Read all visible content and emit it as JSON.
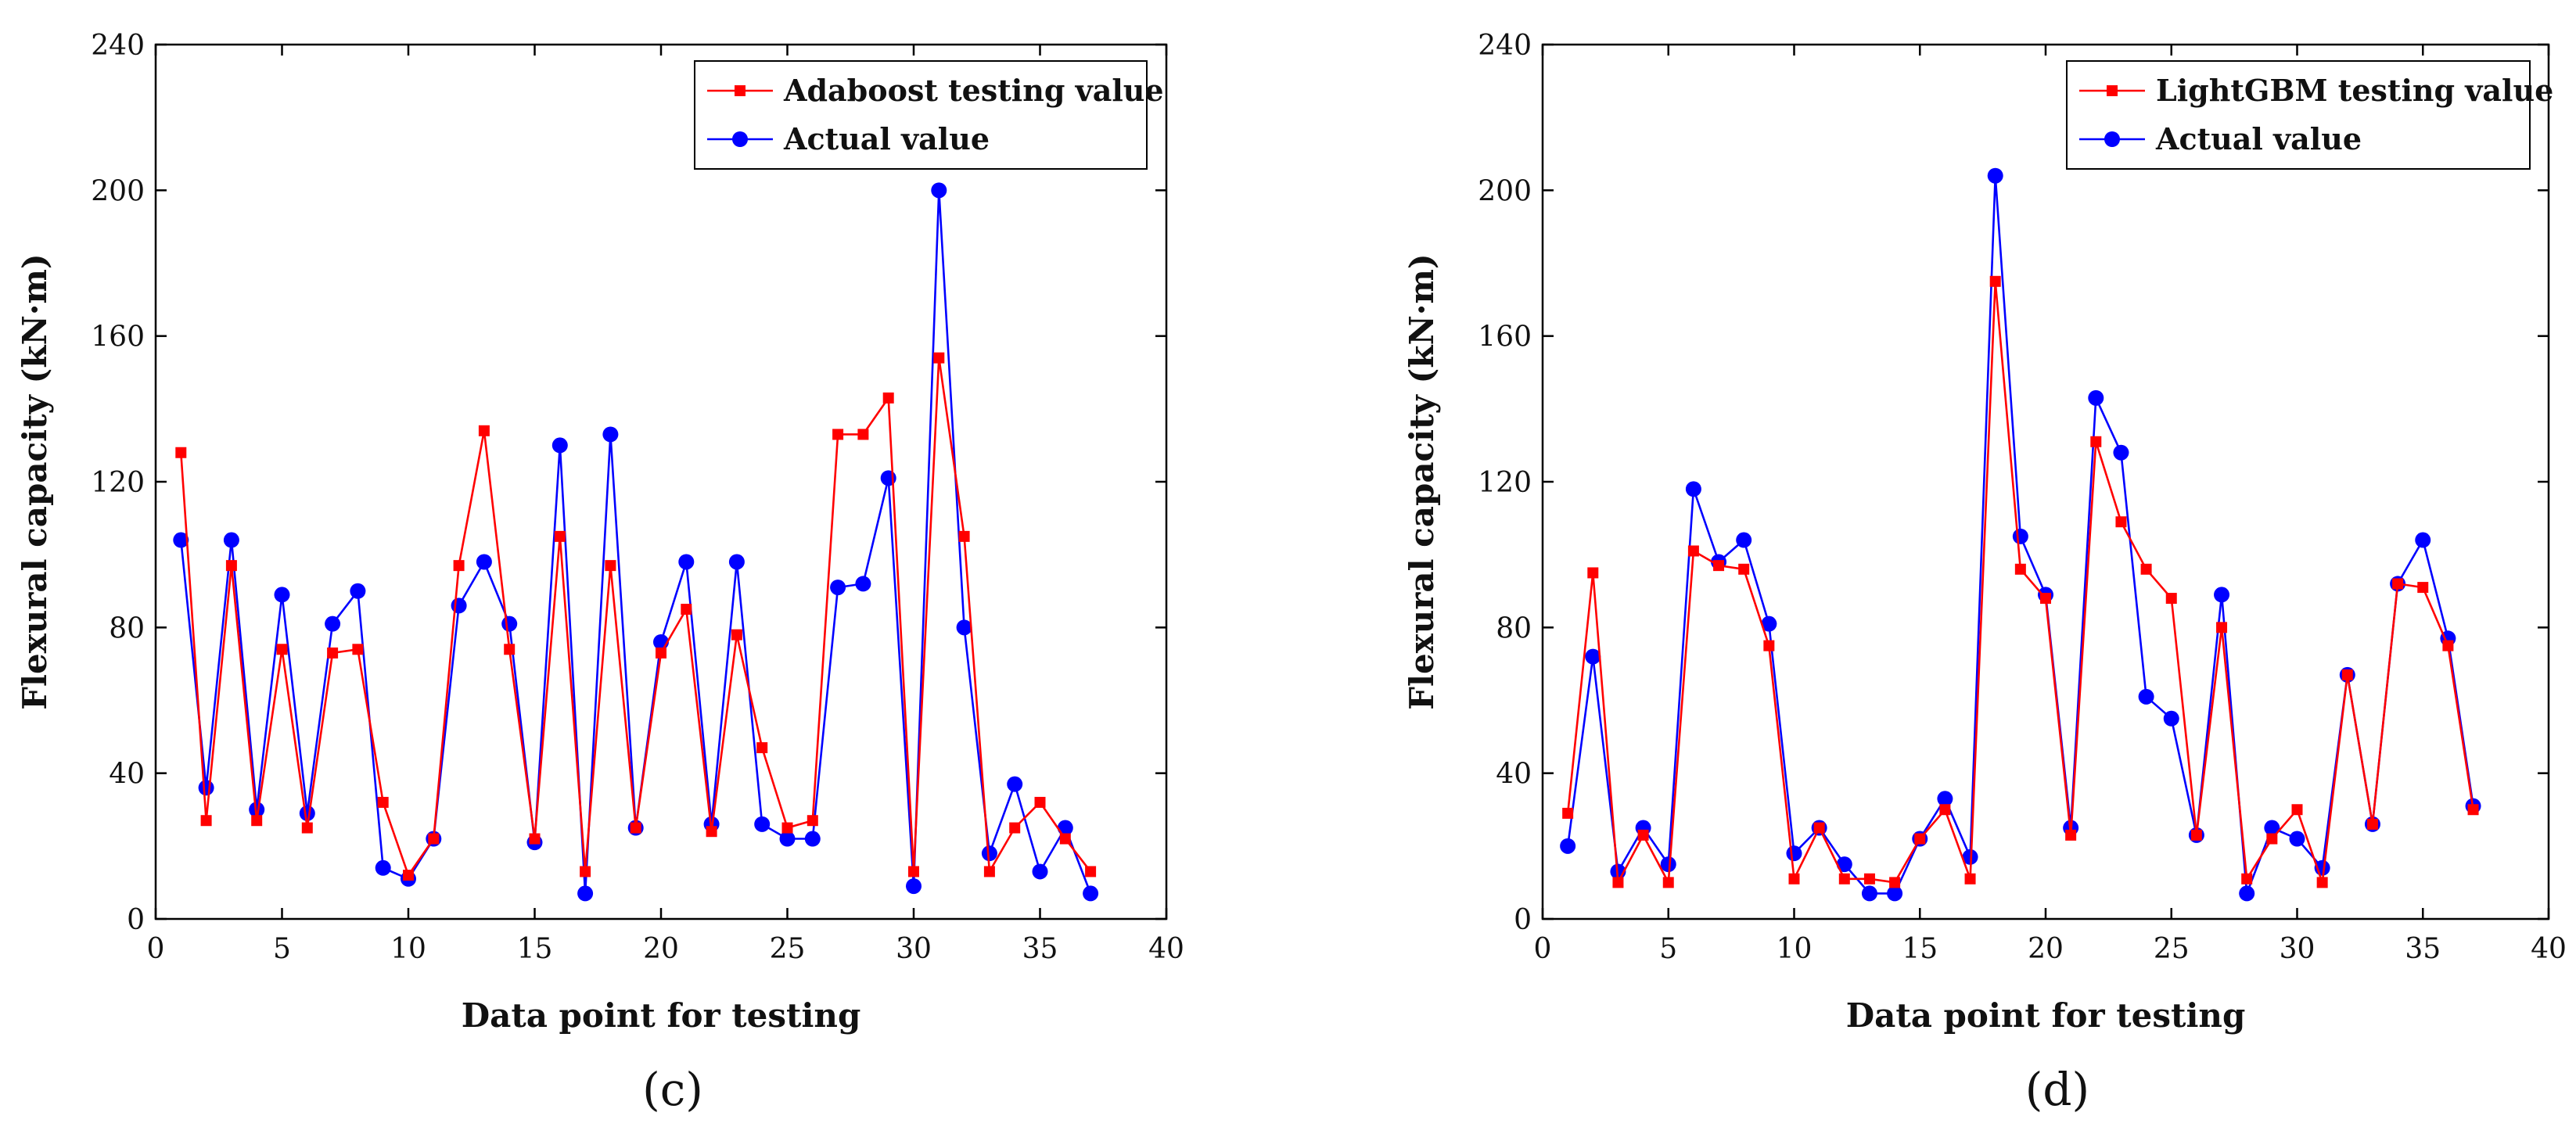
{
  "colors": {
    "predicted": "#ff0000",
    "actual": "#0000ff",
    "axis": "#000000"
  },
  "chart_data": [
    {
      "type": "line",
      "panel_label": "(c)",
      "xlabel": "Data point for testing",
      "ylabel": "Flexural capacity (kN·m)",
      "xlim": [
        0,
        40
      ],
      "ylim": [
        0,
        240
      ],
      "xticks": [
        0,
        5,
        10,
        15,
        20,
        25,
        30,
        35,
        40
      ],
      "yticks": [
        0,
        40,
        80,
        120,
        160,
        200,
        240
      ],
      "legend_position": "top-right",
      "x": [
        1,
        2,
        3,
        4,
        5,
        6,
        7,
        8,
        9,
        10,
        11,
        12,
        13,
        14,
        15,
        16,
        17,
        18,
        19,
        20,
        21,
        22,
        23,
        24,
        25,
        26,
        27,
        28,
        29,
        30,
        31,
        32,
        33,
        34,
        35,
        36,
        37
      ],
      "series": [
        {
          "name": "Adaboost testing value",
          "role": "predicted",
          "values": [
            128,
            27,
            97,
            27,
            74,
            25,
            73,
            74,
            32,
            12,
            22,
            97,
            134,
            74,
            22,
            105,
            13,
            97,
            25,
            73,
            85,
            24,
            78,
            47,
            25,
            27,
            133,
            133,
            143,
            13,
            154,
            105,
            13,
            25,
            32,
            22,
            13
          ]
        },
        {
          "name": "Actual value",
          "role": "actual",
          "values": [
            104,
            36,
            104,
            30,
            89,
            29,
            81,
            90,
            14,
            11,
            22,
            86,
            98,
            81,
            21,
            130,
            7,
            133,
            25,
            76,
            98,
            26,
            98,
            26,
            22,
            22,
            91,
            92,
            121,
            9,
            200,
            80,
            18,
            37,
            13,
            25,
            7
          ]
        }
      ]
    },
    {
      "type": "line",
      "panel_label": "(d)",
      "xlabel": "Data point for testing",
      "ylabel": "Flexural capacity (kN·m)",
      "xlim": [
        0,
        40
      ],
      "ylim": [
        0,
        240
      ],
      "xticks": [
        0,
        5,
        10,
        15,
        20,
        25,
        30,
        35,
        40
      ],
      "yticks": [
        0,
        40,
        80,
        120,
        160,
        200,
        240
      ],
      "legend_position": "top-right",
      "x": [
        1,
        2,
        3,
        4,
        5,
        6,
        7,
        8,
        9,
        10,
        11,
        12,
        13,
        14,
        15,
        16,
        17,
        18,
        19,
        20,
        21,
        22,
        23,
        24,
        25,
        26,
        27,
        28,
        29,
        30,
        31,
        32,
        33,
        34,
        35,
        36,
        37
      ],
      "series": [
        {
          "name": "LightGBM testing value",
          "role": "predicted",
          "values": [
            29,
            95,
            10,
            23,
            10,
            101,
            97,
            96,
            75,
            11,
            25,
            11,
            11,
            10,
            22,
            30,
            11,
            175,
            96,
            88,
            23,
            131,
            109,
            96,
            88,
            23,
            80,
            11,
            22,
            30,
            10,
            67,
            26,
            92,
            91,
            75,
            30
          ]
        },
        {
          "name": "Actual value",
          "role": "actual",
          "values": [
            20,
            72,
            13,
            25,
            15,
            118,
            98,
            104,
            81,
            18,
            25,
            15,
            7,
            7,
            22,
            33,
            17,
            204,
            105,
            89,
            25,
            143,
            128,
            61,
            55,
            23,
            89,
            7,
            25,
            22,
            14,
            67,
            26,
            92,
            104,
            77,
            31
          ]
        }
      ]
    }
  ]
}
